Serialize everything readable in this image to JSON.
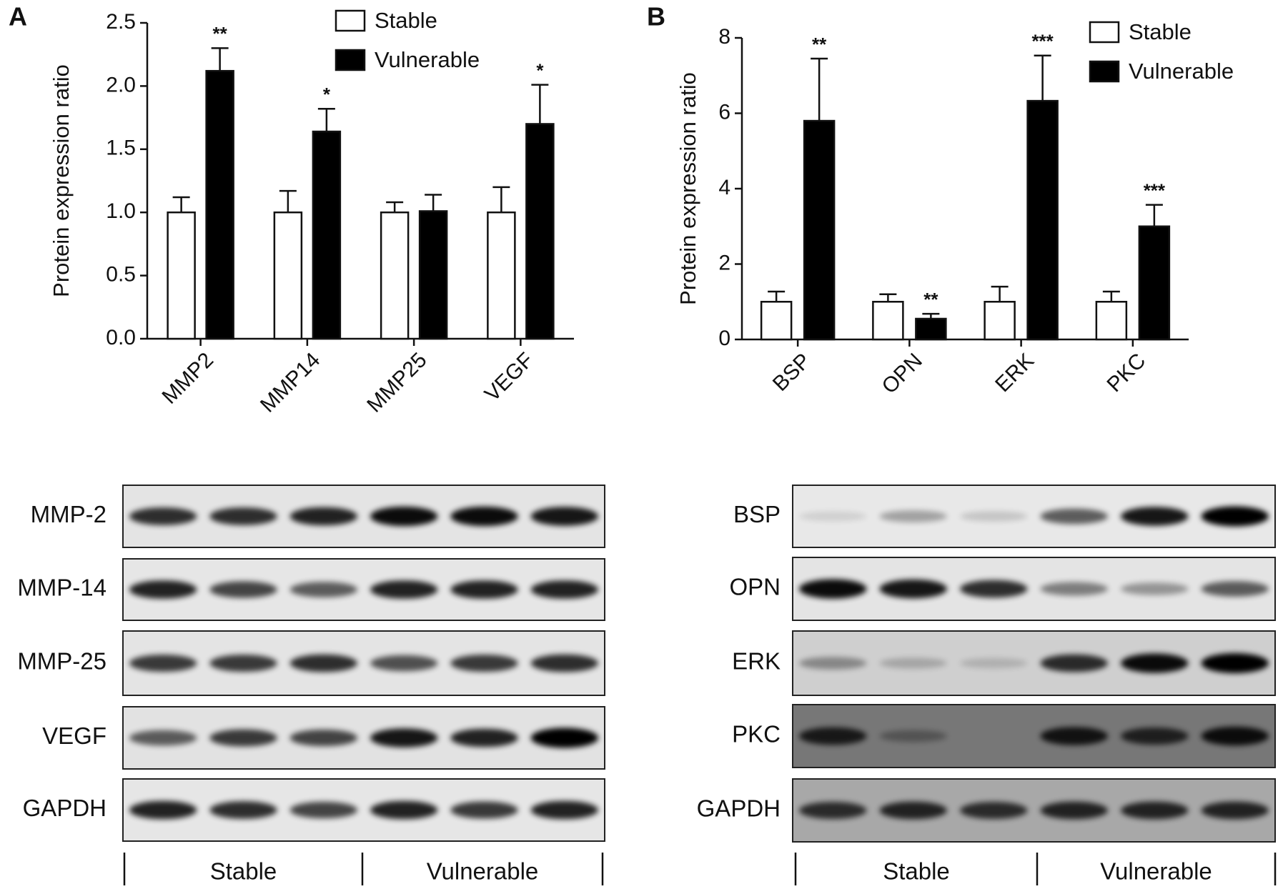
{
  "chart_data": [
    {
      "type": "bar",
      "panel": "A",
      "ylabel": "Protein expression  ratio",
      "categories": [
        "MMP2",
        "MMP14",
        "MMP25",
        "VEGF"
      ],
      "series": [
        {
          "name": "Stable",
          "color": "#ffffff",
          "values": [
            1.0,
            1.0,
            1.0,
            1.0
          ],
          "errors": [
            0.12,
            0.17,
            0.08,
            0.2
          ]
        },
        {
          "name": "Vulnerable",
          "color": "#000000",
          "values": [
            2.12,
            1.64,
            1.01,
            1.7
          ],
          "errors": [
            0.18,
            0.18,
            0.13,
            0.31
          ],
          "annotations": [
            "**",
            "*",
            null,
            "*"
          ]
        }
      ],
      "ylim": [
        0,
        2.5
      ],
      "yticks": [
        {
          "value": 0,
          "label": "0.0"
        },
        0.5,
        {
          "value": 1,
          "label": "1.0"
        },
        1.5,
        {
          "value": 2,
          "label": "2.0"
        },
        2.5
      ],
      "legend": "top-right"
    },
    {
      "type": "bar",
      "panel": "B",
      "ylabel": "Protein expression  ratio",
      "categories": [
        "BSP",
        "OPN",
        "ERK",
        "PKC"
      ],
      "series": [
        {
          "name": "Stable",
          "color": "#ffffff",
          "values": [
            1.0,
            1.0,
            1.0,
            1.0
          ],
          "errors": [
            0.27,
            0.2,
            0.4,
            0.27
          ]
        },
        {
          "name": "Vulnerable",
          "color": "#000000",
          "values": [
            5.8,
            0.55,
            6.33,
            3.0
          ],
          "errors": [
            1.65,
            0.13,
            1.2,
            0.57
          ],
          "annotations": [
            "**",
            "**",
            "***",
            "***"
          ]
        }
      ],
      "ylim": [
        0,
        8
      ],
      "yticks": [
        0,
        2,
        4,
        6,
        8
      ],
      "legend": "top-right"
    }
  ],
  "blots": [
    {
      "rows": [
        "MMP-2",
        "MMP-14",
        "MMP-25",
        "VEGF",
        "GAPDH"
      ],
      "groups": [
        "Stable",
        "Vulnerable"
      ]
    },
    {
      "rows": [
        "BSP",
        "OPN",
        "ERK",
        "PKC",
        "GAPDH"
      ],
      "groups": [
        "Stable",
        "Vulnerable"
      ]
    }
  ]
}
